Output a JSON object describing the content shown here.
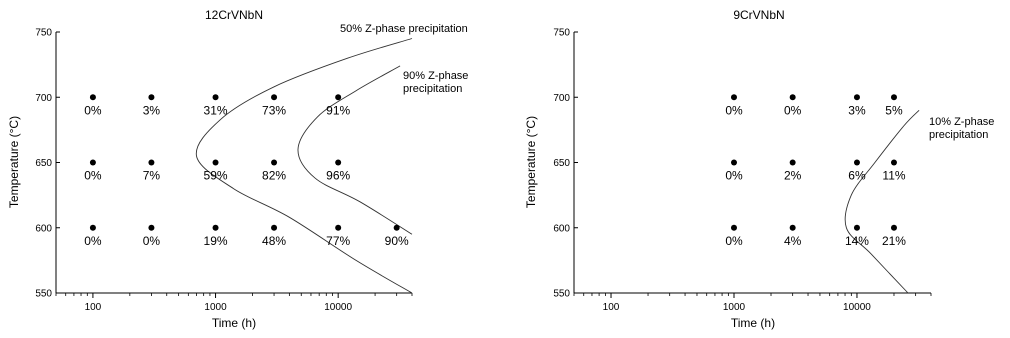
{
  "chart_data": [
    {
      "type": "scatter",
      "title": "12CrVNbN",
      "xlabel": "Time (h)",
      "ylabel": "Temperature (°C)",
      "xscale": "log",
      "xlim": [
        50,
        40000
      ],
      "ylim": [
        550,
        750
      ],
      "xticks": [
        100,
        1000,
        10000
      ],
      "xtick_labels": [
        "100",
        "1000",
        "10000"
      ],
      "yticks": [
        550,
        600,
        650,
        700,
        750
      ],
      "ytick_labels": [
        "550",
        "600",
        "650",
        "700",
        "750"
      ],
      "points": [
        {
          "x": 100,
          "y": 700,
          "label": "0%"
        },
        {
          "x": 300,
          "y": 700,
          "label": "3%"
        },
        {
          "x": 1000,
          "y": 700,
          "label": "31%"
        },
        {
          "x": 3000,
          "y": 700,
          "label": "73%"
        },
        {
          "x": 10000,
          "y": 700,
          "label": "91%"
        },
        {
          "x": 100,
          "y": 650,
          "label": "0%"
        },
        {
          "x": 300,
          "y": 650,
          "label": "7%"
        },
        {
          "x": 1000,
          "y": 650,
          "label": "59%"
        },
        {
          "x": 3000,
          "y": 650,
          "label": "82%"
        },
        {
          "x": 10000,
          "y": 650,
          "label": "96%"
        },
        {
          "x": 100,
          "y": 600,
          "label": "0%"
        },
        {
          "x": 300,
          "y": 600,
          "label": "0%"
        },
        {
          "x": 1000,
          "y": 600,
          "label": "19%"
        },
        {
          "x": 3000,
          "y": 600,
          "label": "48%"
        },
        {
          "x": 10000,
          "y": 600,
          "label": "77%"
        },
        {
          "x": 30000,
          "y": 600,
          "label": "90%"
        }
      ],
      "curves": [
        {
          "name": "50% Z-phase precipitation",
          "points": [
            [
              40000,
              550
            ],
            [
              14000,
              575
            ],
            [
              4000,
              608
            ],
            [
              1400,
              630
            ],
            [
              700,
              655
            ],
            [
              1100,
              683
            ],
            [
              3000,
              708
            ],
            [
              12000,
              730
            ],
            [
              40000,
              745
            ]
          ]
        },
        {
          "name": "90% Z-phase precipitation",
          "points": [
            [
              40000,
              595
            ],
            [
              15000,
              620
            ],
            [
              6500,
              638
            ],
            [
              4700,
              660
            ],
            [
              6800,
              685
            ],
            [
              14000,
              705
            ],
            [
              32000,
              724
            ]
          ]
        }
      ],
      "annotations": [
        {
          "id": "c50_1",
          "text": "50% Z-phase precipitation"
        },
        {
          "id": "c90_1",
          "text": "90% Z-phase"
        },
        {
          "id": "c90_2",
          "text": "precipitation"
        }
      ]
    },
    {
      "type": "scatter",
      "title": "9CrVNbN",
      "xlabel": "Time (h)",
      "ylabel": "Temperature (°C)",
      "xscale": "log",
      "xlim": [
        50,
        40000
      ],
      "ylim": [
        550,
        750
      ],
      "xticks": [
        100,
        1000,
        10000
      ],
      "xtick_labels": [
        "100",
        "1000",
        "10000"
      ],
      "yticks": [
        550,
        600,
        650,
        700,
        750
      ],
      "ytick_labels": [
        "550",
        "600",
        "650",
        "700",
        "750"
      ],
      "points": [
        {
          "x": 1000,
          "y": 700,
          "label": "0%"
        },
        {
          "x": 3000,
          "y": 700,
          "label": "0%"
        },
        {
          "x": 10000,
          "y": 700,
          "label": "3%"
        },
        {
          "x": 20000,
          "y": 700,
          "label": "5%"
        },
        {
          "x": 1000,
          "y": 650,
          "label": "0%"
        },
        {
          "x": 3000,
          "y": 650,
          "label": "2%"
        },
        {
          "x": 10000,
          "y": 650,
          "label": "6%"
        },
        {
          "x": 20000,
          "y": 650,
          "label": "11%"
        },
        {
          "x": 1000,
          "y": 600,
          "label": "0%"
        },
        {
          "x": 3000,
          "y": 600,
          "label": "4%"
        },
        {
          "x": 10000,
          "y": 600,
          "label": "14%"
        },
        {
          "x": 20000,
          "y": 600,
          "label": "21%"
        }
      ],
      "curves": [
        {
          "name": "10% Z-phase precipitation",
          "points": [
            [
              26000,
              550
            ],
            [
              13000,
              580
            ],
            [
              8200,
              600
            ],
            [
              9000,
              625
            ],
            [
              14000,
              650
            ],
            [
              24000,
              678
            ],
            [
              32000,
              690
            ]
          ]
        }
      ],
      "annotations": [
        {
          "id": "c10_1",
          "text": "10% Z-phase"
        },
        {
          "id": "c10_2",
          "text": "precipitation"
        }
      ]
    }
  ]
}
